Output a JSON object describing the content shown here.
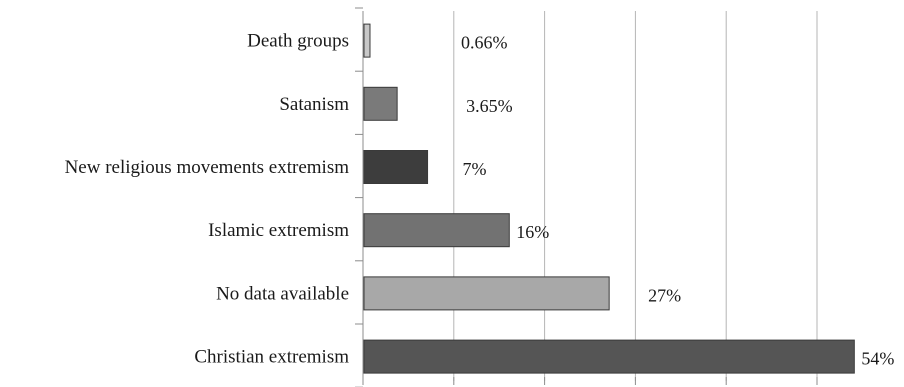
{
  "chart_data": {
    "type": "bar",
    "orientation": "horizontal",
    "categories": [
      "Death groups",
      "Satanism",
      "New religious movements extremism",
      "Islamic extremism",
      "No data available",
      "Christian extremism"
    ],
    "values": [
      0.66,
      3.65,
      7,
      16,
      27,
      54
    ],
    "value_labels": [
      "0.66%",
      "3.65%",
      "7%",
      "16%",
      "27%",
      "54%"
    ],
    "bar_colors": [
      "#c8c8c8",
      "#7a7a7a",
      "#3d3d3d",
      "#727272",
      "#a8a8a8",
      "#555555"
    ],
    "xlim": [
      0,
      60
    ],
    "grid": true,
    "title": "",
    "xlabel": "",
    "ylabel": ""
  }
}
